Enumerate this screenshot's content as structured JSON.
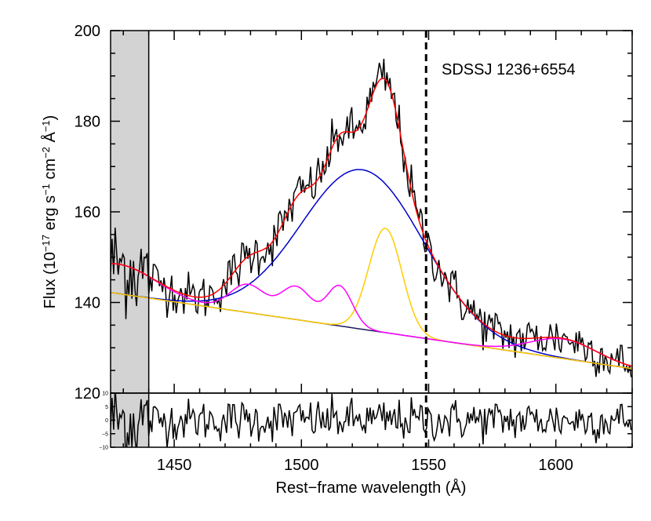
{
  "chart_data": {
    "type": "line",
    "annotation": "SDSSJ 1236+6554",
    "xlabel": "Rest−frame wavelength (Å)",
    "ylabel": {
      "prefix": "Flux (10",
      "exp1": "−17",
      "mid1": " erg s",
      "exp2": "−1",
      "mid2": " cm",
      "exp3": "−2",
      "mid3": " Å",
      "exp4": "−1",
      "suffix": ")"
    },
    "xlim": [
      1425,
      1630
    ],
    "ylim": [
      120,
      200
    ],
    "xticks": [
      1450,
      1500,
      1550,
      1600
    ],
    "xtick_labels": [
      "1450",
      "1500",
      "1550",
      "1600"
    ],
    "yticks": [
      120,
      140,
      160,
      180,
      200
    ],
    "ytick_labels": [
      "120",
      "140",
      "160",
      "180",
      "200"
    ],
    "residual_ylim": [
      -10,
      10
    ],
    "residual_yticks": [
      -10,
      -5,
      0,
      5,
      10
    ],
    "residual_ytick_labels": [
      "−10",
      "−5",
      "0",
      "5",
      "10"
    ],
    "masked_region": [
      1425,
      1440
    ],
    "vertical_marker_x": 1549,
    "continuum": {
      "color": "#1a1a5e",
      "x0": 1425,
      "y0": 142.2,
      "x1": 1630,
      "y1": 125.4
    },
    "broad_component": {
      "color": "#0000cc",
      "center": 1524,
      "amplitude": 35.2,
      "sigma": 24
    },
    "narrow_component": {
      "color": "#ffcc00",
      "center": 1533,
      "amplitude": 23,
      "sigma": 6.5
    },
    "blend_components": {
      "color": "#ff00ff",
      "gaussians": [
        {
          "center": 1428,
          "amplitude": 6.5,
          "sigma": 15
        },
        {
          "center": 1479,
          "amplitude": 6.2,
          "sigma": 7
        },
        {
          "center": 1498,
          "amplitude": 7.2,
          "sigma": 6
        },
        {
          "center": 1515,
          "amplitude": 8.8,
          "sigma": 5
        },
        {
          "center": 1603,
          "amplitude": 4.3,
          "sigma": 13
        }
      ]
    },
    "total_model": {
      "color": "#ff0000"
    },
    "observed": {
      "color": "#000000",
      "noise_sigma": 2.6,
      "seed": 12345
    },
    "series": [
      {
        "name": "observed spectrum",
        "color": "#000000"
      },
      {
        "name": "total fit",
        "color": "#ff0000"
      },
      {
        "name": "broad component",
        "color": "#0000cc"
      },
      {
        "name": "narrow component",
        "color": "#ffcc00"
      },
      {
        "name": "blended features",
        "color": "#ff00ff"
      },
      {
        "name": "continuum",
        "color": "#1a1a5e"
      },
      {
        "name": "residuals",
        "color": "#000000"
      }
    ]
  }
}
